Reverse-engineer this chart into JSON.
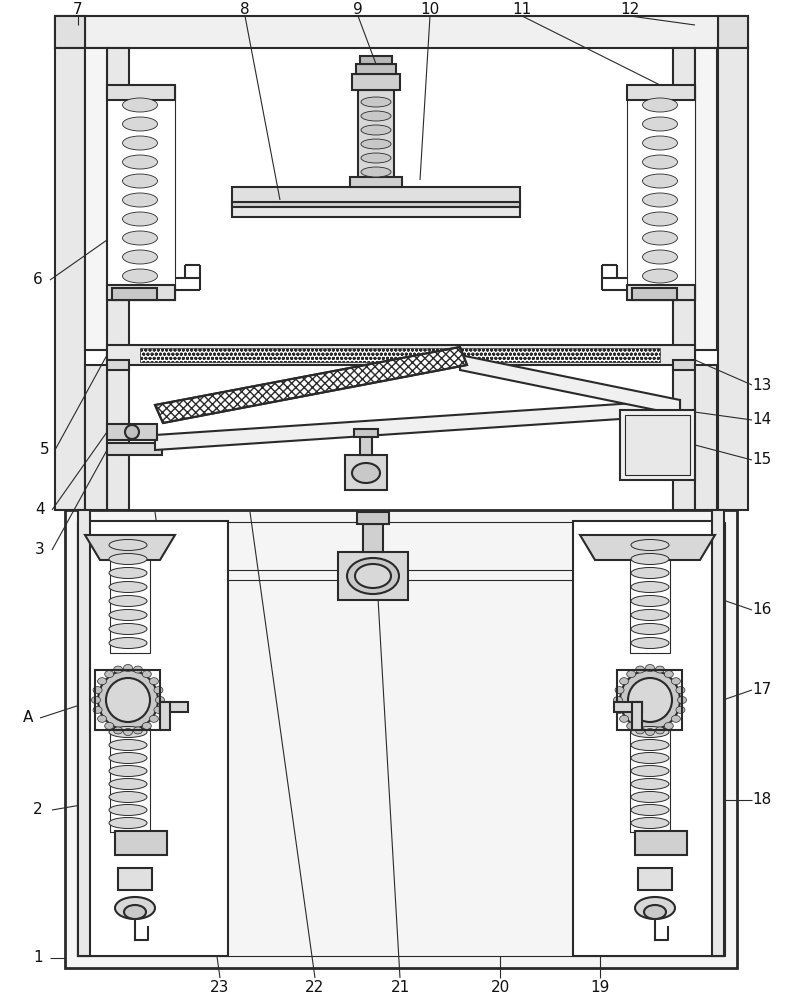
{
  "bg_color": "#ffffff",
  "lc": "#2a2a2a",
  "lw": 1.5,
  "tlw": 0.8
}
